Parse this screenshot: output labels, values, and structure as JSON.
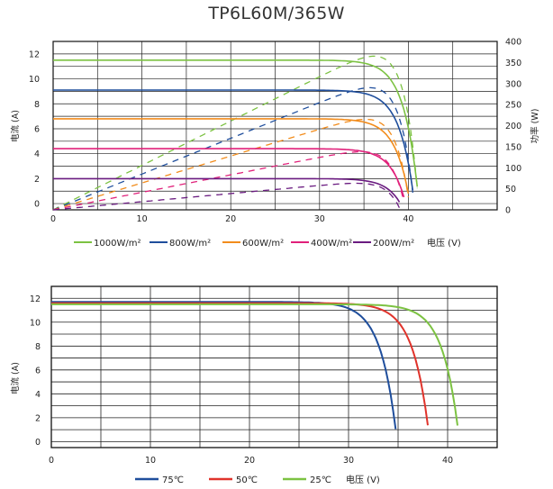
{
  "title": "TP6L60M/365W",
  "chart_data": [
    {
      "type": "line",
      "xlabel": "电压 (V)",
      "ylabel": "电流 (A)",
      "y2label": "功率 (W)",
      "xlim": [
        0,
        50
      ],
      "ylim": [
        -0.5,
        13
      ],
      "y2lim": [
        0,
        400
      ],
      "xticks": [
        "0",
        "10",
        "20",
        "30",
        "40"
      ],
      "yticks": [
        "0",
        "2",
        "4",
        "6",
        "8",
        "10",
        "12"
      ],
      "y2ticks": [
        "0",
        "50",
        "100",
        "150",
        "200",
        "250",
        "300",
        "350",
        "400"
      ],
      "grid": true,
      "legend_position": "bottom",
      "series": [
        {
          "name": "1000W/m²",
          "color": "#7cc242",
          "isc": 11.5,
          "voc": 41.2,
          "pmax": 365,
          "vmp": 34.5
        },
        {
          "name": "800W/m²",
          "color": "#1f4e9c",
          "isc": 9.1,
          "voc": 40.7,
          "pmax": 290,
          "vmp": 34.0
        },
        {
          "name": "600W/m²",
          "color": "#f28c1c",
          "isc": 6.8,
          "voc": 40.2,
          "pmax": 215,
          "vmp": 33.5
        },
        {
          "name": "400W/m²",
          "color": "#e0207a",
          "isc": 4.4,
          "voc": 39.7,
          "pmax": 138,
          "vmp": 33.0
        },
        {
          "name": "200W/m²",
          "color": "#6a1b80",
          "isc": 2.0,
          "voc": 39.1,
          "pmax": 63,
          "vmp": 32.5
        }
      ]
    },
    {
      "type": "line",
      "xlabel": "电压 (V)",
      "ylabel": "电流 (A)",
      "xlim": [
        0,
        45
      ],
      "ylim": [
        -0.5,
        13
      ],
      "xticks": [
        "0",
        "10",
        "20",
        "30",
        "40"
      ],
      "yticks": [
        "0",
        "2",
        "4",
        "6",
        "8",
        "10",
        "12"
      ],
      "grid": true,
      "legend_position": "bottom",
      "series": [
        {
          "name": "75℃",
          "color": "#1f4e9c",
          "isc": 11.7,
          "voc": 34.9
        },
        {
          "name": "50℃",
          "color": "#e0332b",
          "isc": 11.6,
          "voc": 38.2
        },
        {
          "name": "25℃",
          "color": "#7cc242",
          "isc": 11.5,
          "voc": 41.2
        }
      ]
    }
  ]
}
